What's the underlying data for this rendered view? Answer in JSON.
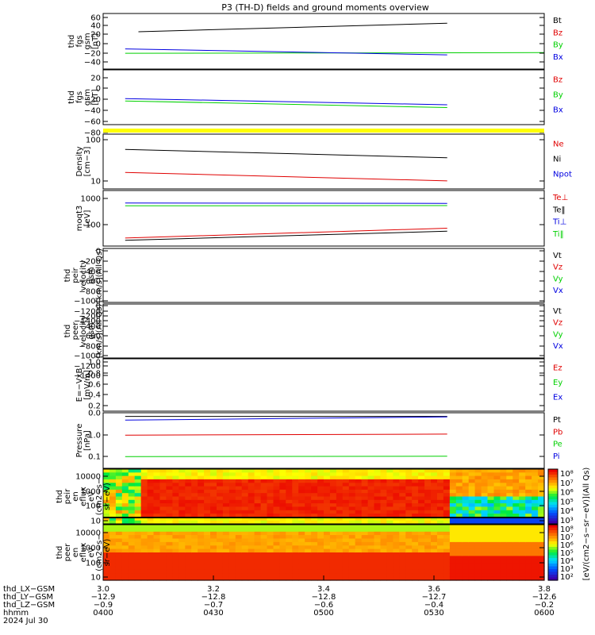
{
  "title": "P3 (TH-D) fields and ground moments overview",
  "colors": {
    "black": "#000000",
    "red": "#e00000",
    "green": "#00d000",
    "blue": "#0000e0",
    "yellow": "#ffff00"
  },
  "chart_data": [
    {
      "type": "line",
      "panel": "fgs_gsm",
      "ylabel": [
        "thd",
        "fgs",
        "gsm",
        "[nT]"
      ],
      "ylim": [
        -50,
        65
      ],
      "ticks": [
        "60",
        "40",
        "20",
        "0",
        "−20",
        "−40"
      ],
      "legend": [
        {
          "name": "Bt",
          "color": "black"
        },
        {
          "name": "Bz",
          "color": "red"
        },
        {
          "name": "By",
          "color": "green"
        },
        {
          "name": "Bx",
          "color": "blue"
        }
      ]
    },
    {
      "type": "line",
      "panel": "fgs_gsm_2",
      "ylabel": [
        "thd",
        "fgs",
        "gsm",
        "[nT]"
      ],
      "ylim": [
        -95,
        35
      ],
      "ticks": [
        "20",
        "0",
        "−20",
        "−40",
        "−60",
        "−80"
      ],
      "legend": [
        {
          "name": "Bz",
          "color": "red"
        },
        {
          "name": "By",
          "color": "green"
        },
        {
          "name": "Bx",
          "color": "blue"
        }
      ]
    },
    {
      "type": "line",
      "panel": "density",
      "ylabel": [
        "Density",
        "[cm−3]"
      ],
      "ylog": true,
      "ticks": [
        "100",
        "10"
      ],
      "legend": [
        {
          "name": "Ne",
          "color": "red"
        },
        {
          "name": "Ni",
          "color": "black"
        },
        {
          "name": "Npot",
          "color": "blue"
        }
      ]
    },
    {
      "type": "line",
      "panel": "temperature",
      "ylabel": [
        "moqt3",
        "[eV]"
      ],
      "ylog": true,
      "ticks": [
        "1000",
        "100"
      ],
      "legend": [
        {
          "name": "Te⊥",
          "color": "red"
        },
        {
          "name": "Te‖",
          "color": "black"
        },
        {
          "name": "Ti⊥",
          "color": "blue"
        },
        {
          "name": "Ti‖",
          "color": "green"
        }
      ]
    },
    {
      "type": "line",
      "panel": "peir_velocity",
      "ylabel": [
        "thd",
        "peir",
        "velocity",
        "gsm",
        "[km/s](All Qs)"
      ],
      "ylim": [
        -1400,
        0
      ],
      "ticks": [
        "0",
        "−200",
        "−400",
        "−600",
        "−800",
        "−1000",
        "−1200",
        "−1400"
      ],
      "legend": [
        {
          "name": "Vt",
          "color": "black"
        },
        {
          "name": "Vz",
          "color": "red"
        },
        {
          "name": "Vy",
          "color": "green"
        },
        {
          "name": "Vx",
          "color": "blue"
        }
      ]
    },
    {
      "type": "line",
      "panel": "peer_velocity",
      "ylabel": [
        "thd",
        "peer",
        "velocity",
        "gsm",
        "[km/s](All Qs)"
      ],
      "ylim": [
        -1400,
        0
      ],
      "ticks": [
        "0",
        "−200",
        "−400",
        "−600",
        "−800",
        "−1000",
        "−1200",
        "−1400"
      ],
      "legend": [
        {
          "name": "Vt",
          "color": "black"
        },
        {
          "name": "Vz",
          "color": "red"
        },
        {
          "name": "Vy",
          "color": "green"
        },
        {
          "name": "Vx",
          "color": "blue"
        }
      ]
    },
    {
      "type": "line",
      "panel": "efield",
      "ylabel": [
        "E=−VxB",
        "[mV/m]"
      ],
      "ylim": [
        0,
        1
      ],
      "ticks": [
        "1.0",
        "0.8",
        "0.6",
        "0.4",
        "0.2",
        "0.0"
      ],
      "legend": [
        {
          "name": "Ez",
          "color": "red"
        },
        {
          "name": "Ey",
          "color": "green"
        },
        {
          "name": "Ex",
          "color": "blue"
        }
      ]
    },
    {
      "type": "line",
      "panel": "pressure",
      "ylabel": [
        "Pressure",
        "[nPa]"
      ],
      "ylog": true,
      "ticks": [
        "1.0",
        "0.1"
      ],
      "legend": [
        {
          "name": "Pt",
          "color": "black"
        },
        {
          "name": "Pb",
          "color": "red"
        },
        {
          "name": "Pe",
          "color": "green"
        },
        {
          "name": "Pi",
          "color": "blue"
        }
      ]
    },
    {
      "type": "heatmap",
      "panel": "peir_en_eflux",
      "ylabel": [
        "thd",
        "peir",
        "en",
        "eflux",
        "eV",
        "(cm2−s−",
        "sr−eV)"
      ],
      "ylog": true,
      "ticks": [
        "10000",
        "1000",
        "100",
        "10"
      ],
      "colorbar": {
        "label": "[eV/(cm2−s−sr−eV)](All Qs)",
        "ticks": [
          "10⁸",
          "10⁷",
          "10⁶",
          "10⁵",
          "10⁴",
          "10³"
        ]
      }
    },
    {
      "type": "heatmap",
      "panel": "peer_en_eflux",
      "ylabel": [
        "thd",
        "peer",
        "en",
        "eflux",
        "eV",
        "(cm2−s−",
        "sr−eV)"
      ],
      "ylog": true,
      "ticks": [
        "10000",
        "1000",
        "100",
        "10"
      ],
      "colorbar": {
        "label": "[eV/(cm2−s−sr−eV)](All Qs)",
        "ticks": [
          "10⁸",
          "10⁷",
          "10⁶",
          "10⁵",
          "10⁴",
          "10³",
          "10²"
        ]
      }
    }
  ],
  "xaxis": {
    "row_labels": [
      "thd_LX−GSM",
      "thd_LY−GSM",
      "thd_LZ−GSM",
      "hhmm",
      "2024 Jul 30"
    ],
    "columns": [
      {
        "x": "3.0",
        "ly": "−12.9",
        "lz": "−0.9",
        "hhmm": "0400"
      },
      {
        "x": "3.2",
        "ly": "−12.8",
        "lz": "−0.7",
        "hhmm": "0430"
      },
      {
        "x": "3.4",
        "ly": "−12.8",
        "lz": "−0.6",
        "hhmm": "0500"
      },
      {
        "x": "3.6",
        "ly": "−12.7",
        "lz": "−0.4",
        "hhmm": "0530"
      },
      {
        "x": "3.8",
        "ly": "−12.6",
        "lz": "−0.2",
        "hhmm": "0600"
      }
    ]
  }
}
